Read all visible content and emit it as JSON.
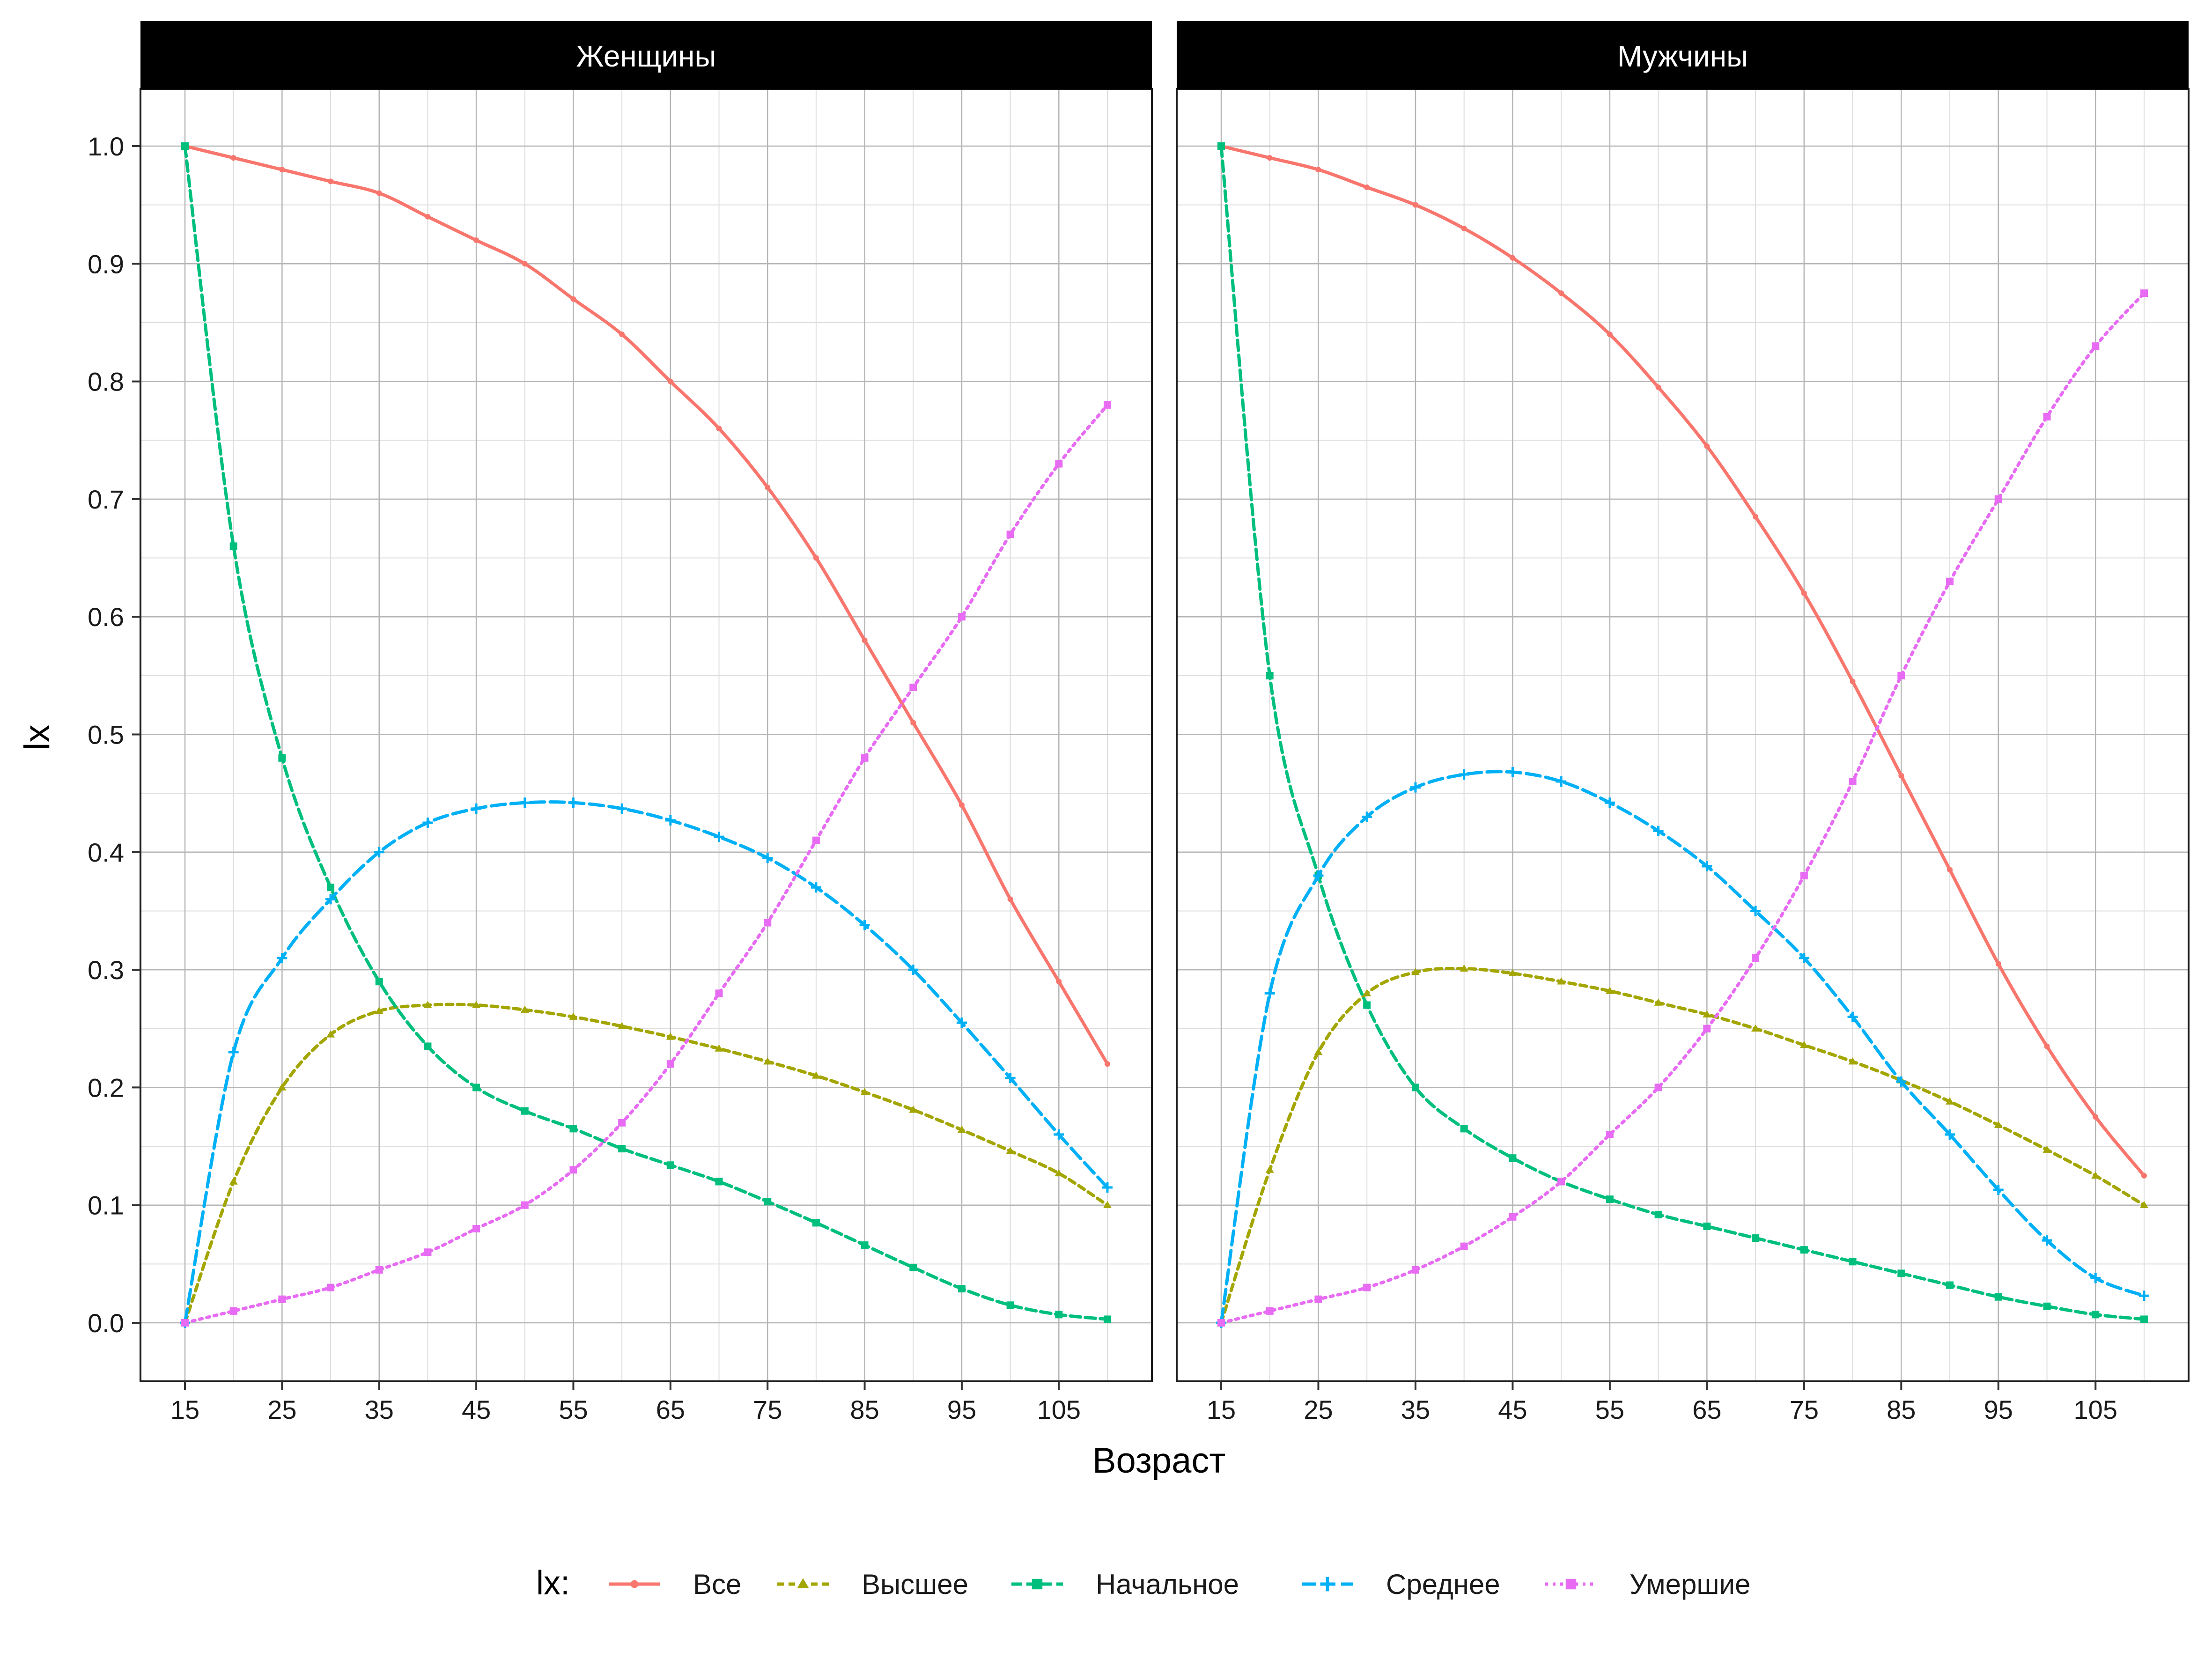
{
  "chart_data": {
    "type": "line",
    "xlabel": "Возраст",
    "ylabel": "lx",
    "xlim": [
      15,
      110
    ],
    "ylim": [
      0,
      1
    ],
    "x_ticks": [
      "15",
      "25",
      "35",
      "45",
      "55",
      "65",
      "75",
      "85",
      "95",
      "105"
    ],
    "y_ticks": [
      "0.0",
      "0.1",
      "0.2",
      "0.3",
      "0.4",
      "0.5",
      "0.6",
      "0.7",
      "0.8",
      "0.9",
      "1.0"
    ],
    "grid": true,
    "legend": {
      "title": "lx:",
      "position": "bottom",
      "entries": [
        "Все",
        "Высшее",
        "Начальное",
        "Среднее",
        "Умершие"
      ]
    },
    "colors": {
      "Все": "#F8766D",
      "Высшее": "#A3A500",
      "Начальное": "#00BF7D",
      "Среднее": "#00B0F6",
      "Умершие": "#E76BF3"
    },
    "x": [
      15,
      20,
      25,
      30,
      35,
      40,
      45,
      50,
      55,
      60,
      65,
      70,
      75,
      80,
      85,
      90,
      95,
      100,
      105,
      110
    ],
    "panels": [
      {
        "title": "Женщины",
        "series": [
          {
            "name": "Все",
            "values": [
              1.0,
              0.99,
              0.98,
              0.97,
              0.96,
              0.94,
              0.92,
              0.9,
              0.87,
              0.84,
              0.8,
              0.76,
              0.71,
              0.65,
              0.58,
              0.51,
              0.44,
              0.36,
              0.29,
              0.22
            ]
          },
          {
            "name": "Высшее",
            "values": [
              0.0,
              0.12,
              0.2,
              0.245,
              0.265,
              0.27,
              0.27,
              0.266,
              0.26,
              0.252,
              0.243,
              0.233,
              0.222,
              0.21,
              0.196,
              0.181,
              0.164,
              0.146,
              0.127,
              0.1
            ]
          },
          {
            "name": "Начальное",
            "values": [
              1.0,
              0.66,
              0.48,
              0.37,
              0.29,
              0.235,
              0.2,
              0.18,
              0.165,
              0.148,
              0.134,
              0.12,
              0.103,
              0.085,
              0.066,
              0.047,
              0.029,
              0.015,
              0.007,
              0.003
            ]
          },
          {
            "name": "Среднее",
            "values": [
              0.0,
              0.23,
              0.31,
              0.36,
              0.4,
              0.425,
              0.437,
              0.442,
              0.442,
              0.437,
              0.427,
              0.413,
              0.395,
              0.37,
              0.338,
              0.3,
              0.255,
              0.208,
              0.16,
              0.115
            ]
          },
          {
            "name": "Умершие",
            "values": [
              0.0,
              0.01,
              0.02,
              0.03,
              0.045,
              0.06,
              0.08,
              0.1,
              0.13,
              0.17,
              0.22,
              0.28,
              0.34,
              0.41,
              0.48,
              0.54,
              0.6,
              0.67,
              0.73,
              0.78
            ]
          }
        ]
      },
      {
        "title": "Мужчины",
        "series": [
          {
            "name": "Все",
            "values": [
              1.0,
              0.99,
              0.98,
              0.965,
              0.95,
              0.93,
              0.905,
              0.875,
              0.84,
              0.795,
              0.745,
              0.685,
              0.62,
              0.545,
              0.465,
              0.385,
              0.305,
              0.235,
              0.175,
              0.125
            ]
          },
          {
            "name": "Высшее",
            "values": [
              0.0,
              0.13,
              0.23,
              0.28,
              0.298,
              0.301,
              0.297,
              0.29,
              0.282,
              0.272,
              0.262,
              0.25,
              0.236,
              0.222,
              0.206,
              0.188,
              0.168,
              0.147,
              0.125,
              0.1
            ]
          },
          {
            "name": "Начальное",
            "values": [
              1.0,
              0.55,
              0.38,
              0.27,
              0.2,
              0.165,
              0.14,
              0.12,
              0.105,
              0.092,
              0.082,
              0.072,
              0.062,
              0.052,
              0.042,
              0.032,
              0.022,
              0.014,
              0.007,
              0.003
            ]
          },
          {
            "name": "Среднее",
            "values": [
              0.0,
              0.28,
              0.38,
              0.43,
              0.455,
              0.466,
              0.468,
              0.46,
              0.442,
              0.418,
              0.388,
              0.35,
              0.31,
              0.26,
              0.205,
              0.16,
              0.113,
              0.07,
              0.038,
              0.023
            ]
          },
          {
            "name": "Умершие",
            "values": [
              0.0,
              0.01,
              0.02,
              0.03,
              0.045,
              0.065,
              0.09,
              0.12,
              0.16,
              0.2,
              0.25,
              0.31,
              0.38,
              0.46,
              0.55,
              0.63,
              0.7,
              0.77,
              0.83,
              0.875
            ]
          }
        ]
      }
    ]
  }
}
